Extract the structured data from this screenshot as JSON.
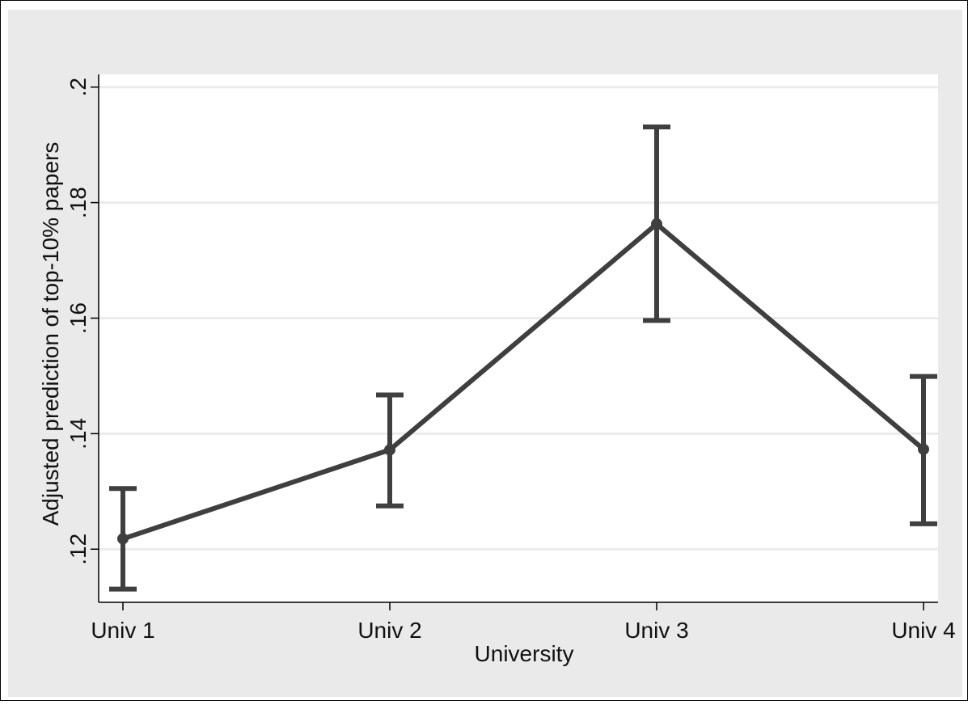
{
  "chart_data": {
    "type": "line",
    "title": "",
    "xlabel": "University",
    "ylabel": "Adjusted prediction of top-10% papers",
    "categories": [
      "Univ 1",
      "Univ 2",
      "Univ 3",
      "Univ 4"
    ],
    "series": [
      {
        "values": [
          0.1218,
          0.1372,
          0.1763,
          0.1373
        ],
        "ci_lower": [
          0.1131,
          0.1275,
          0.1596,
          0.1244
        ],
        "ci_upper": [
          0.1305,
          0.1467,
          0.1931,
          0.1499
        ]
      }
    ],
    "yticks": [
      0.12,
      0.14,
      0.16,
      0.18,
      0.2
    ],
    "ytick_labels": [
      ".12",
      ".14",
      ".16",
      ".18",
      ".2"
    ],
    "ylim": [
      0.1108,
      0.2022
    ],
    "grid": true,
    "error_bars": true,
    "colors": {
      "line": "#3f3f3f",
      "background": "#eaeaea",
      "plot_area": "#ffffff",
      "grid": "#ebebeb"
    }
  }
}
